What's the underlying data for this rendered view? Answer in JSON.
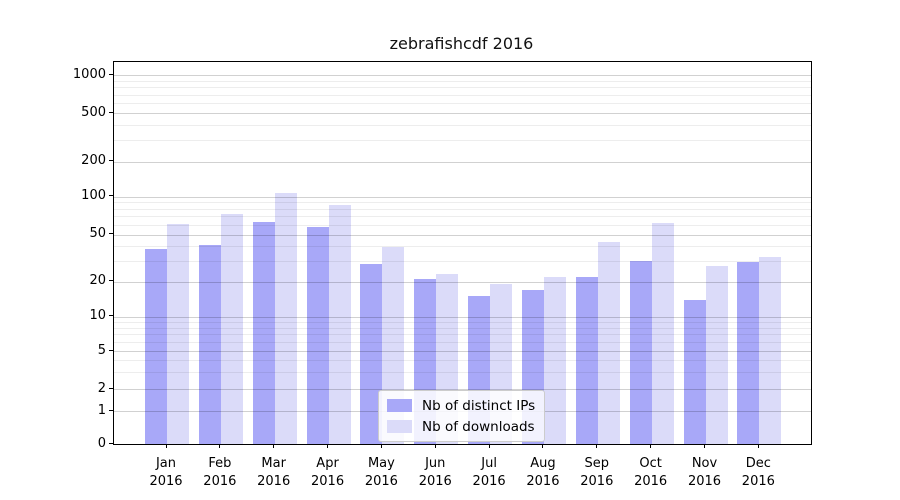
{
  "chart_data": {
    "type": "bar",
    "title": "zebrafishcdf 2016",
    "categories": [
      "Jan",
      "Feb",
      "Mar",
      "Apr",
      "May",
      "Jun",
      "Jul",
      "Aug",
      "Sep",
      "Oct",
      "Nov",
      "Dec"
    ],
    "category_year": "2016",
    "series": [
      {
        "name": "Nb of distinct IPs",
        "color": "#a8a8f8",
        "values": [
          38,
          41,
          63,
          57,
          28,
          21,
          15,
          17,
          22,
          30,
          14,
          29
        ]
      },
      {
        "name": "Nb of downloads",
        "color": "#dbdbf9",
        "values": [
          61,
          73,
          107,
          85,
          39,
          23,
          19,
          22,
          43,
          62,
          27,
          32
        ]
      }
    ],
    "xlabel": "",
    "ylabel": "",
    "yticks": [
      0,
      1,
      2,
      5,
      10,
      20,
      50,
      100,
      200,
      500,
      1000
    ],
    "yscale": "symlog",
    "ylim": [
      0,
      1280
    ],
    "grid": "both",
    "legend_position": "lower-center"
  }
}
